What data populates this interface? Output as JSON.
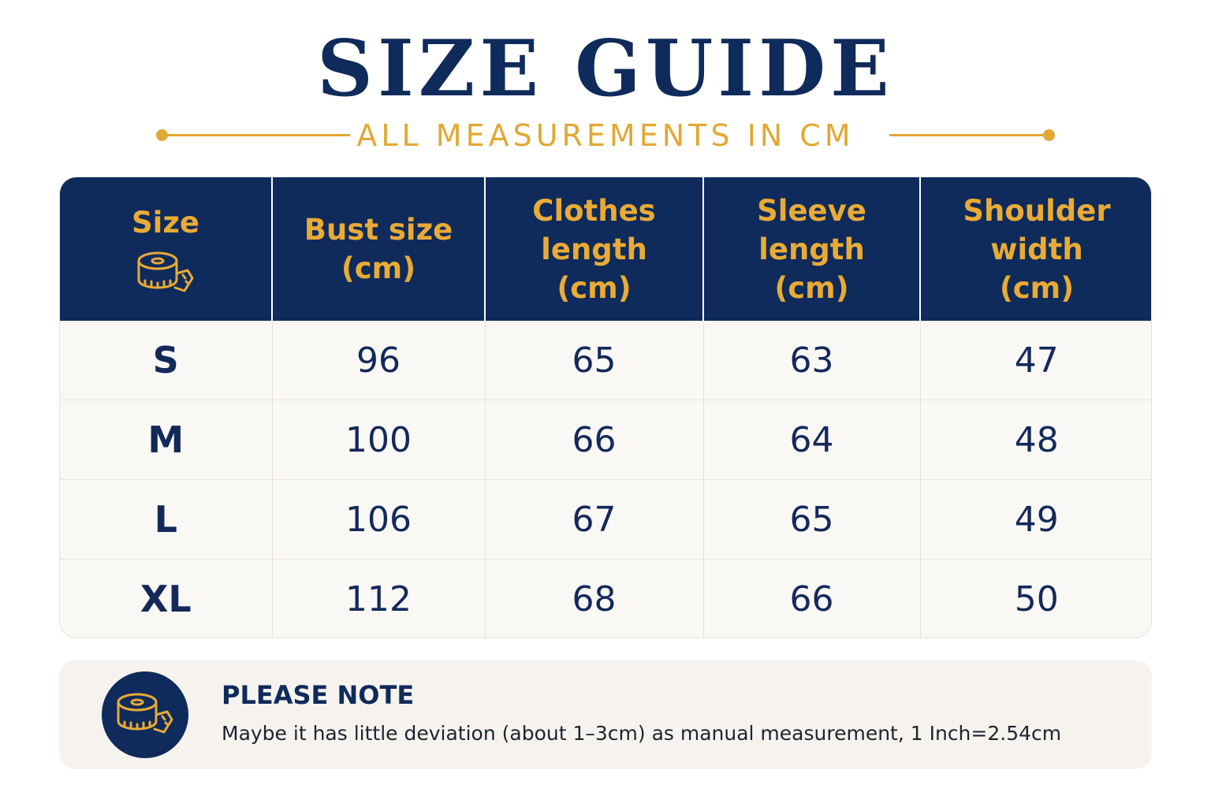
{
  "title": "SIZE GUIDE",
  "subtitle": "ALL MEASUREMENTS IN CM",
  "colors": {
    "navy": "#0f2b5b",
    "gold": "#e2a835",
    "row_bg": "#faf8f5"
  },
  "table": {
    "headers": {
      "size": "Size",
      "bust": [
        "Bust size",
        "(cm)"
      ],
      "length": [
        "Clothes",
        "length",
        "(cm)"
      ],
      "sleeve": [
        "Sleeve",
        "length",
        "(cm)"
      ],
      "shoulder": [
        "Shoulder",
        "width",
        "(cm)"
      ]
    },
    "header_icon": "measuring-tape-icon",
    "rows": [
      [
        "S",
        "96",
        "65",
        "63",
        "47"
      ],
      [
        "M",
        "100",
        "66",
        "64",
        "48"
      ],
      [
        "L",
        "106",
        "67",
        "65",
        "49"
      ],
      [
        "XL",
        "112",
        "68",
        "66",
        "50"
      ]
    ]
  },
  "note": {
    "icon": "measuring-tape-icon",
    "title": "PLEASE NOTE",
    "text": "Maybe it has little deviation (about 1–3cm) as manual measurement, 1 Inch=2.54cm"
  }
}
